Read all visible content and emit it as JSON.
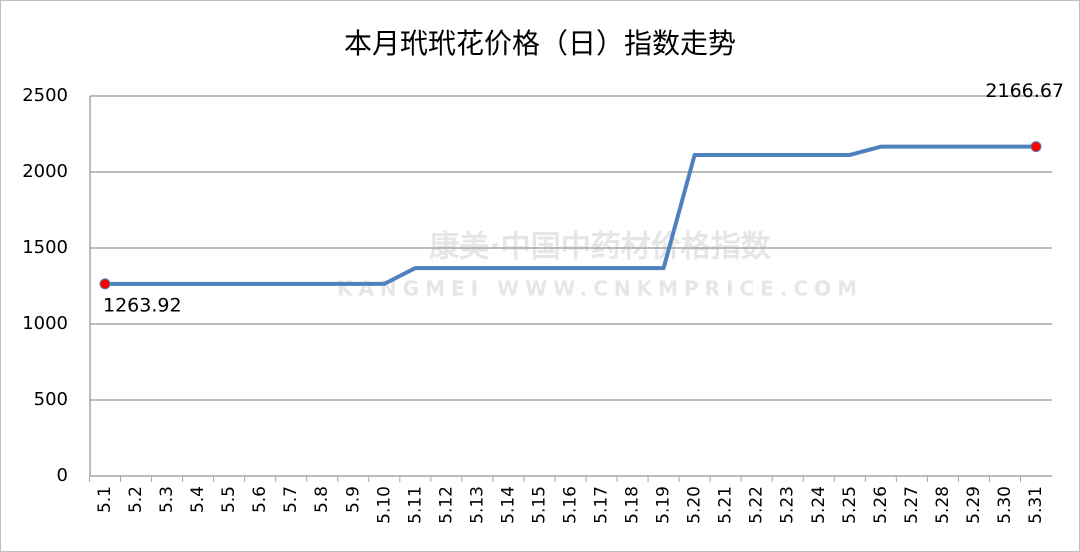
{
  "chart_data": {
    "type": "line",
    "title": "本月玳玳花价格（日）指数走势",
    "watermark": [
      "康美·中国中药材价格指数",
      "KANGMEI WWW.CNKMPRICE.COM"
    ],
    "categories": [
      "5.1",
      "5.2",
      "5.3",
      "5.4",
      "5.5",
      "5.6",
      "5.7",
      "5.8",
      "5.9",
      "5.10",
      "5.11",
      "5.12",
      "5.13",
      "5.14",
      "5.15",
      "5.16",
      "5.17",
      "5.18",
      "5.19",
      "5.20",
      "5.21",
      "5.22",
      "5.23",
      "5.24",
      "5.25",
      "5.26",
      "5.27",
      "5.28",
      "5.29",
      "5.30",
      "5.31"
    ],
    "series": [
      {
        "name": "玳玳花",
        "color": "#4f81bd",
        "marker_color": "#ff0000",
        "values": [
          1263.92,
          1263.92,
          1263.92,
          1263.92,
          1263.92,
          1263.92,
          1263.92,
          1263.92,
          1263.92,
          1263.92,
          1368,
          1368,
          1368,
          1368,
          1368,
          1368,
          1368,
          1368,
          1368,
          2112,
          2112,
          2112,
          2112,
          2112,
          2112,
          2166.67,
          2166.67,
          2166.67,
          2166.67,
          2166.67,
          2166.67
        ]
      }
    ],
    "labeled_points": [
      0,
      30
    ],
    "ylim": [
      0,
      2500
    ],
    "yticks": [
      0,
      500,
      1000,
      1500,
      2000,
      2500
    ],
    "grid": true
  }
}
